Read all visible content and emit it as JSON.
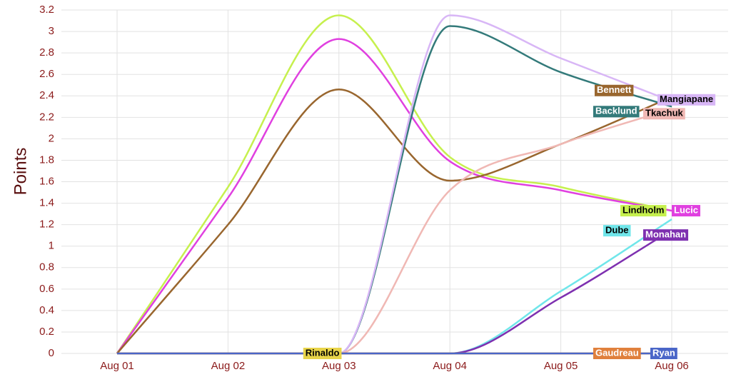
{
  "chart_data": {
    "type": "line",
    "y_label": "Points",
    "categories": [
      "Aug 01",
      "Aug 02",
      "Aug 03",
      "Aug 04",
      "Aug 05",
      "Aug 06"
    ],
    "ylim": [
      0,
      3.2
    ],
    "yticks": [
      0,
      0.2,
      0.4,
      0.6,
      0.8,
      1,
      1.2,
      1.4,
      1.6,
      1.8,
      2,
      2.2,
      2.4,
      2.6,
      2.8,
      3,
      3.2
    ],
    "grid": true,
    "series": [
      {
        "name": "Lindholm",
        "color": "#c6f04e",
        "values": [
          0,
          1.55,
          3.15,
          1.83,
          1.55,
          1.33
        ]
      },
      {
        "name": "Lucic",
        "color": "#e040e0",
        "values": [
          0,
          1.45,
          2.93,
          1.79,
          1.52,
          1.33
        ]
      },
      {
        "name": "Bennett",
        "color": "#99662e",
        "values": [
          0,
          1.2,
          2.46,
          1.61,
          1.95,
          2.39
        ]
      },
      {
        "name": "Backlund",
        "color": "#337a7a",
        "values": [
          0,
          0,
          0,
          3.05,
          2.62,
          2.3
        ]
      },
      {
        "name": "Mangiapane",
        "color": "#d8b6f6",
        "values": [
          0,
          0,
          0,
          3.15,
          2.75,
          2.35
        ]
      },
      {
        "name": "Tkachuk",
        "color": "#f0b8b4",
        "values": [
          0,
          0,
          0,
          1.52,
          1.95,
          2.28
        ]
      },
      {
        "name": "Dube",
        "color": "#70e6ea",
        "values": [
          0,
          0,
          0,
          0,
          0.58,
          1.25
        ]
      },
      {
        "name": "Monahan",
        "color": "#7e30b0",
        "values": [
          0,
          0,
          0,
          0,
          0.52,
          1.15
        ]
      },
      {
        "name": "Rinaldo",
        "color": "#e8d44a",
        "values": [
          0,
          0,
          0,
          0,
          0,
          0
        ]
      },
      {
        "name": "Gaudreau",
        "color": "#e0803c",
        "values": [
          0,
          0,
          0,
          0,
          0,
          0
        ]
      },
      {
        "name": "Ryan",
        "color": "#4a66c8",
        "values": [
          0,
          0,
          0,
          0,
          0,
          0
        ]
      }
    ]
  }
}
